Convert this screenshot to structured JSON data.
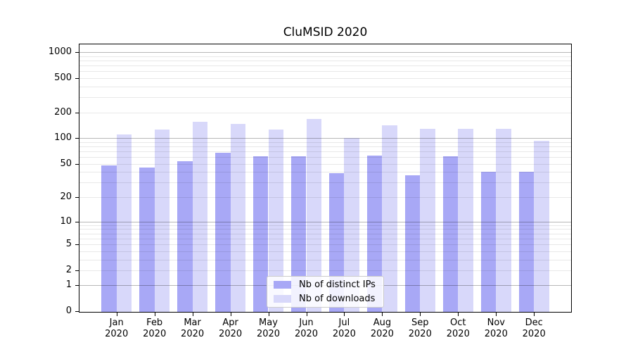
{
  "chart_data": {
    "type": "bar",
    "title": "CluMSID 2020",
    "categories": [
      "Jan",
      "Feb",
      "Mar",
      "Apr",
      "May",
      "Jun",
      "Jul",
      "Aug",
      "Sep",
      "Oct",
      "Nov",
      "Dec"
    ],
    "category_year": "2020",
    "series": [
      {
        "name": "Nb of distinct IPs",
        "color": "#a8a8f6",
        "values": [
          48,
          45,
          54,
          68,
          61,
          62,
          39,
          63,
          37,
          62,
          40,
          40
        ]
      },
      {
        "name": "Nb of downloads",
        "color": "#d8d8fa",
        "values": [
          110,
          127,
          156,
          148,
          126,
          168,
          100,
          143,
          128,
          130,
          128,
          94
        ]
      }
    ],
    "yscale": "log1p",
    "yticks": [
      0,
      1,
      2,
      5,
      10,
      20,
      50,
      100,
      200,
      500,
      1000
    ],
    "ylim": [
      0,
      1000
    ],
    "grid": true,
    "legend_position": "lower center"
  },
  "colors": {
    "background": "#ffffff",
    "spine": "#000000",
    "major_gridline": "rgba(0,0,0,0.28)",
    "minor_gridline": "rgba(0,0,0,0.09)",
    "ips_bar": "#a8a8f6",
    "downloads_bar": "#d8d8fa",
    "legend_border": "#cccccc",
    "text": "#000000"
  }
}
